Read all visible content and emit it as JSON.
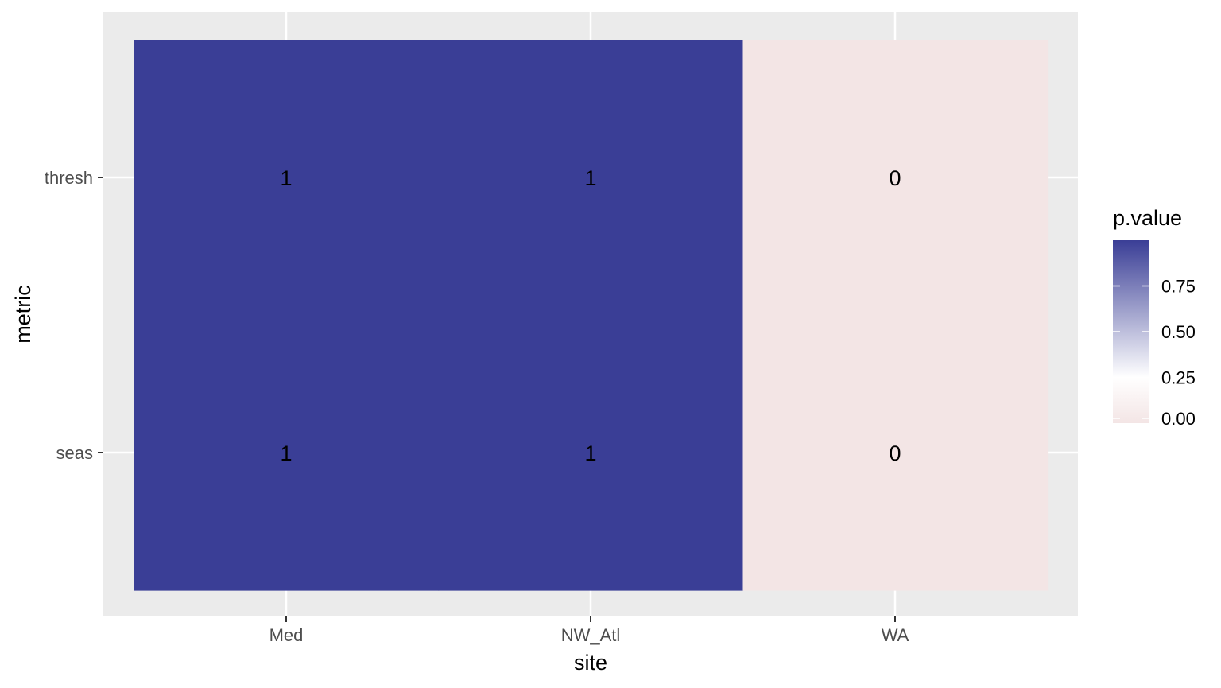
{
  "chart_data": {
    "type": "heatmap",
    "xlabel": "site",
    "ylabel": "metric",
    "x_categories": [
      "Med",
      "NW_Atl",
      "WA"
    ],
    "y_categories": [
      "seas",
      "thresh"
    ],
    "cells": [
      {
        "x": "Med",
        "y": "thresh",
        "value": 1,
        "label": "1"
      },
      {
        "x": "NW_Atl",
        "y": "thresh",
        "value": 1,
        "label": "1"
      },
      {
        "x": "WA",
        "y": "thresh",
        "value": 0,
        "label": "0"
      },
      {
        "x": "Med",
        "y": "seas",
        "value": 1,
        "label": "1"
      },
      {
        "x": "NW_Atl",
        "y": "seas",
        "value": 1,
        "label": "1"
      },
      {
        "x": "WA",
        "y": "seas",
        "value": 0,
        "label": "0"
      }
    ],
    "legend": {
      "title": "p.value",
      "position": "right",
      "range": [
        0,
        1
      ],
      "breaks": [
        0,
        0.25,
        0.5,
        0.75
      ],
      "break_labels": [
        "0.00",
        "0.25",
        "0.50",
        "0.75"
      ],
      "gradient_colors": {
        "low": "#f3e5e5",
        "mid": "#ffffff",
        "high": "#3a3e96"
      }
    },
    "panel_background": "#ebebeb",
    "grid": true
  }
}
